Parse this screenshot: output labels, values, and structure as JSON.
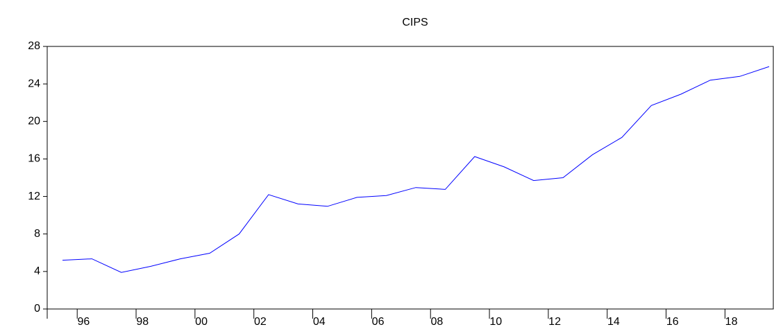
{
  "chart_data": {
    "type": "line",
    "title": "CIPS",
    "categories": [
      null,
      "96",
      null,
      "98",
      null,
      "00",
      null,
      "02",
      null,
      "04",
      null,
      "06",
      null,
      "08",
      null,
      "10",
      null,
      "12",
      null,
      "14",
      null,
      "16",
      null,
      "18",
      null
    ],
    "series": [
      {
        "name": "CIPS",
        "color": "#0000ff",
        "values": [
          5.2,
          5.35,
          3.9,
          4.55,
          5.35,
          5.95,
          8.0,
          12.2,
          11.2,
          10.95,
          11.9,
          12.1,
          12.95,
          12.75,
          16.25,
          15.15,
          13.7,
          14.0,
          16.45,
          18.3,
          21.7,
          22.9,
          24.4,
          24.8,
          25.85
        ]
      }
    ],
    "ylim": [
      0,
      28
    ],
    "yticks": [
      0,
      4,
      8,
      12,
      16,
      20,
      24,
      28
    ],
    "grid": false
  }
}
